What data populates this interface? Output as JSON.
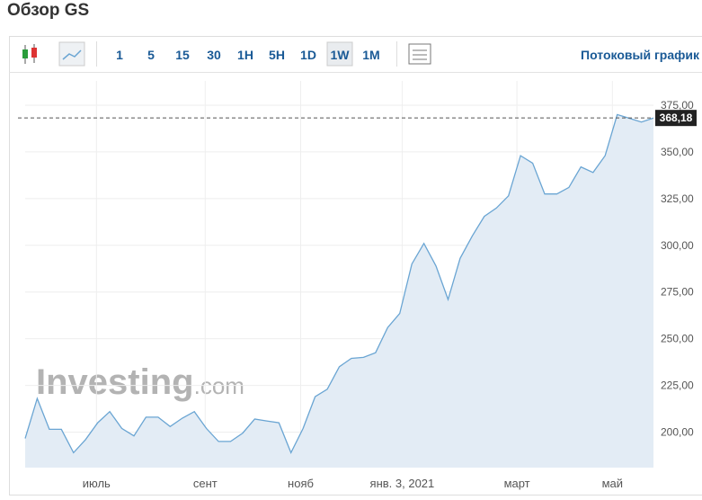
{
  "header": {
    "title": "Обзор GS"
  },
  "toolbar": {
    "intervals": [
      "1",
      "5",
      "15",
      "30",
      "1H",
      "5H",
      "1D",
      "1W",
      "1M"
    ],
    "selected": "1W",
    "link": "Потоковый график"
  },
  "watermark": {
    "brand": "Investing",
    "suffix": ".com"
  },
  "chart_data": {
    "type": "area",
    "color": "#6aa5d3",
    "fill": "#e3ecf5",
    "x": [
      0,
      1,
      2,
      3,
      4,
      5,
      6,
      7,
      8,
      9,
      10,
      11,
      12,
      13,
      14,
      15,
      16,
      17,
      18,
      19,
      20,
      21,
      22,
      23,
      24,
      25,
      26,
      27,
      28,
      29,
      30,
      31,
      32,
      33,
      34,
      35,
      36,
      37,
      38,
      39,
      40,
      41,
      42,
      43,
      44,
      45,
      46,
      47,
      48,
      49,
      50,
      51,
      52
    ],
    "values": [
      196.6,
      218,
      201.5,
      201.5,
      189,
      196,
      205,
      211,
      202,
      198,
      208,
      208,
      203,
      207.5,
      211,
      202,
      195,
      195,
      199.5,
      207,
      206,
      205,
      189,
      202,
      219,
      223,
      235,
      239.5,
      240,
      242.5,
      256,
      263.5,
      290,
      301,
      289,
      271,
      293,
      305,
      315.5,
      320,
      326.5,
      348,
      344,
      327.5,
      327.5,
      331,
      342,
      339,
      348,
      370,
      368,
      366,
      368.18
    ],
    "last_label": "368,18",
    "xlim": [
      0,
      52
    ],
    "xticks": [
      {
        "value": 5.9,
        "label": "июль"
      },
      {
        "value": 14.9,
        "label": "сент"
      },
      {
        "value": 22.8,
        "label": "нояб"
      },
      {
        "value": 31.2,
        "label": "янв. 3, 2021"
      },
      {
        "value": 40.7,
        "label": "март"
      },
      {
        "value": 48.6,
        "label": "май"
      }
    ],
    "ylim": [
      181,
      388
    ],
    "yticks": [
      {
        "value": 200,
        "label": "200,00"
      },
      {
        "value": 225,
        "label": "225,00"
      },
      {
        "value": 250,
        "label": "250,00"
      },
      {
        "value": 275,
        "label": "275,00"
      },
      {
        "value": 300,
        "label": "300,00"
      },
      {
        "value": 325,
        "label": "325,00"
      },
      {
        "value": 350,
        "label": "350,00"
      },
      {
        "value": 375,
        "label": "375,00"
      }
    ],
    "grid": true
  }
}
